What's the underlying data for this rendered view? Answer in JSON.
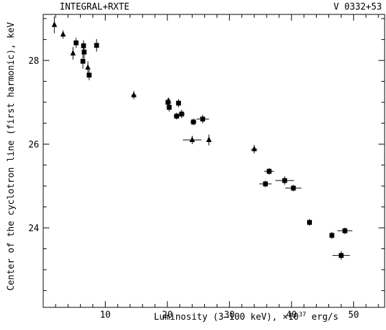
{
  "chart_data": {
    "type": "scatter",
    "title_left": "INTEGRAL+RXTE",
    "title_right": "V 0332+53",
    "xlabel_prefix": "Luminosity (3–100 keV), ×10",
    "xlabel_exp": "37",
    "xlabel_suffix": " erg/s",
    "ylabel": "Center of the cyclotron line (first harmonic), keV",
    "xlim": [
      0,
      55
    ],
    "ylim": [
      22.1,
      29.1
    ],
    "x_major_ticks": [
      10,
      20,
      30,
      40,
      50
    ],
    "x_minor_step": 2,
    "y_major_ticks": [
      24,
      26,
      28
    ],
    "y_minor_step": 0.5,
    "grid": false,
    "series": [
      {
        "marker": "square",
        "points": [
          {
            "x": 5.3,
            "y": 28.42,
            "xerr": 0.3,
            "yerr": 0.12
          },
          {
            "x": 6.5,
            "y": 28.35,
            "xerr": 0.3,
            "yerr": 0.13
          },
          {
            "x": 6.6,
            "y": 28.2,
            "xerr": 0.3,
            "yerr": 0.15
          },
          {
            "x": 6.4,
            "y": 27.98,
            "xerr": 0.3,
            "yerr": 0.18
          },
          {
            "x": 7.4,
            "y": 27.65,
            "xerr": 0.3,
            "yerr": 0.12
          },
          {
            "x": 8.6,
            "y": 28.36,
            "xerr": 0.3,
            "yerr": 0.15
          },
          {
            "x": 20.1,
            "y": 27.0,
            "xerr": 0.4,
            "yerr": 0.1
          },
          {
            "x": 20.3,
            "y": 26.88,
            "xerr": 0.4,
            "yerr": 0.1
          },
          {
            "x": 21.5,
            "y": 26.67,
            "xerr": 0.5,
            "yerr": 0.08
          },
          {
            "x": 21.8,
            "y": 26.98,
            "xerr": 0.4,
            "yerr": 0.1
          },
          {
            "x": 22.3,
            "y": 26.72,
            "xerr": 0.5,
            "yerr": 0.1
          },
          {
            "x": 24.2,
            "y": 26.53,
            "xerr": 0.5,
            "yerr": 0.08
          },
          {
            "x": 25.7,
            "y": 26.6,
            "xerr": 1.0,
            "yerr": 0.1
          },
          {
            "x": 36.4,
            "y": 25.35,
            "xerr": 0.8,
            "yerr": 0.08
          },
          {
            "x": 35.8,
            "y": 25.05,
            "xerr": 1.0,
            "yerr": 0.08
          },
          {
            "x": 38.9,
            "y": 25.13,
            "xerr": 1.5,
            "yerr": 0.1
          },
          {
            "x": 40.3,
            "y": 24.95,
            "xerr": 1.3,
            "yerr": 0.08
          },
          {
            "x": 42.9,
            "y": 24.13,
            "xerr": 0.3,
            "yerr": 0.08
          },
          {
            "x": 46.5,
            "y": 23.82,
            "xerr": 0.3,
            "yerr": 0.08
          },
          {
            "x": 48.6,
            "y": 23.93,
            "xerr": 1.2,
            "yerr": 0.08
          },
          {
            "x": 48.0,
            "y": 23.34,
            "xerr": 1.4,
            "yerr": 0.1
          }
        ]
      },
      {
        "marker": "triangle",
        "points": [
          {
            "x": 1.8,
            "y": 28.85,
            "xerr": 0,
            "yerr": 0.2
          },
          {
            "x": 3.2,
            "y": 28.62,
            "xerr": 0,
            "yerr": 0.1
          },
          {
            "x": 4.8,
            "y": 28.17,
            "xerr": 0,
            "yerr": 0.15
          },
          {
            "x": 7.2,
            "y": 27.83,
            "xerr": 0,
            "yerr": 0.15
          },
          {
            "x": 14.6,
            "y": 27.17,
            "xerr": 0.4,
            "yerr": 0.1
          },
          {
            "x": 20.2,
            "y": 27.03,
            "xerr": 0.3,
            "yerr": 0.08
          },
          {
            "x": 24.0,
            "y": 26.1,
            "xerr": 1.5,
            "yerr": 0.1
          },
          {
            "x": 26.7,
            "y": 26.1,
            "xerr": 0,
            "yerr": 0.13
          },
          {
            "x": 34.0,
            "y": 25.88,
            "xerr": 0.5,
            "yerr": 0.1
          }
        ]
      }
    ]
  }
}
